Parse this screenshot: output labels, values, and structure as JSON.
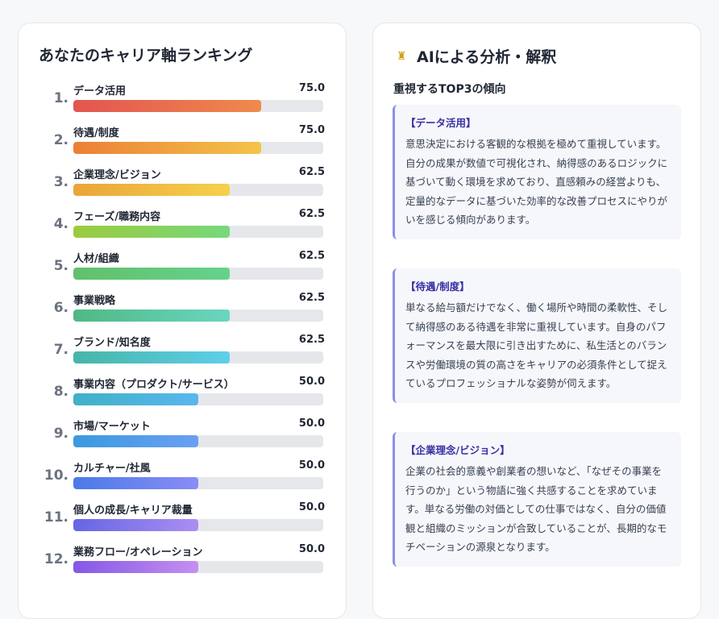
{
  "ranking": {
    "title": "あなたのキャリア軸ランキング",
    "items": [
      {
        "rank": "1.",
        "label": "データ活用",
        "score": "75.0",
        "value": 75.0,
        "grad": [
          "#e25550",
          "#ef8a4c"
        ]
      },
      {
        "rank": "2.",
        "label": "待遇/制度",
        "score": "75.0",
        "value": 75.0,
        "grad": [
          "#ec7f36",
          "#f3c44a"
        ]
      },
      {
        "rank": "3.",
        "label": "企業理念/ビジョン",
        "score": "62.5",
        "value": 62.5,
        "grad": [
          "#eaa53a",
          "#f6d14a"
        ]
      },
      {
        "rank": "4.",
        "label": "フェーズ/職務内容",
        "score": "62.5",
        "value": 62.5,
        "grad": [
          "#9ccb3e",
          "#76d87a"
        ]
      },
      {
        "rank": "5.",
        "label": "人材/組織",
        "score": "62.5",
        "value": 62.5,
        "grad": [
          "#62c06a",
          "#64d28d"
        ]
      },
      {
        "rank": "6.",
        "label": "事業戦略",
        "score": "62.5",
        "value": 62.5,
        "grad": [
          "#4fb884",
          "#6ad6c0"
        ]
      },
      {
        "rank": "7.",
        "label": "ブランド/知名度",
        "score": "62.5",
        "value": 62.5,
        "grad": [
          "#46b5a8",
          "#5ecfe9"
        ]
      },
      {
        "rank": "8.",
        "label": "事業内容（プロダクト/サービス）",
        "score": "50.0",
        "value": 50.0,
        "grad": [
          "#3fb1c6",
          "#5ab6ee"
        ]
      },
      {
        "rank": "9.",
        "label": "市場/マーケット",
        "score": "50.0",
        "value": 50.0,
        "grad": [
          "#3a9ae0",
          "#6b9ff3"
        ]
      },
      {
        "rank": "10.",
        "label": "カルチャー/社風",
        "score": "50.0",
        "value": 50.0,
        "grad": [
          "#4a7ae8",
          "#8a8df5"
        ]
      },
      {
        "rank": "11.",
        "label": "個人の成長/キャリア裁量",
        "score": "50.0",
        "value": 50.0,
        "grad": [
          "#6466e6",
          "#ac8ef2"
        ]
      },
      {
        "rank": "12.",
        "label": "業務フロー/オペレーション",
        "score": "50.0",
        "value": 50.0,
        "grad": [
          "#8458e6",
          "#c58ff0"
        ]
      }
    ]
  },
  "analysis": {
    "icon": "trophy-icon",
    "title": "AIによる分析・解釈",
    "subtitle": "重視するTOP3の傾向",
    "items": [
      {
        "heading": "【データ活用】",
        "body": "意思決定における客観的な根拠を極めて重視しています。自分の成果が数値で可視化され、納得感のあるロジックに基づいて動く環境を求めており、直感頼みの経営よりも、定量的なデータに基づいた効率的な改善プロセスにやりがいを感じる傾向があります。"
      },
      {
        "heading": "【待遇/制度】",
        "body": "単なる給与額だけでなく、働く場所や時間の柔軟性、そして納得感のある待遇を非常に重視しています。自身のパフォーマンスを最大限に引き出すために、私生活とのバランスや労働環境の質の高さをキャリアの必須条件として捉えているプロフェッショナルな姿勢が伺えます。"
      },
      {
        "heading": "【企業理念/ビジョン】",
        "body": "企業の社会的意義や創業者の想いなど、「なぜその事業を行うのか」という物語に強く共感することを求めています。単なる労働の対価としての仕事ではなく、自分の価値観と組織のミッションが合致していることが、長期的なモチベーションの源泉となります。"
      }
    ]
  }
}
